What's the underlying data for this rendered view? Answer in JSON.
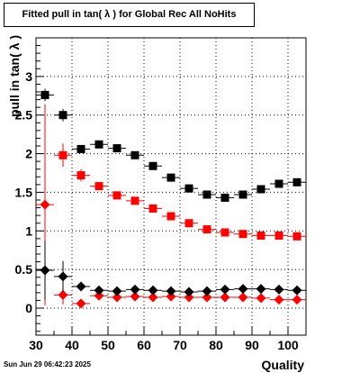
{
  "chart_data": {
    "type": "scatter",
    "title": "Fitted pull in tan( λ ) for Global Rec All NoHits",
    "xlabel": "Quality",
    "ylabel": "pull in tan( λ )",
    "xlim": [
      30,
      105
    ],
    "ylim": [
      -0.35,
      3.5
    ],
    "x_ticks": [
      30,
      40,
      50,
      60,
      70,
      80,
      90,
      100
    ],
    "y_ticks": [
      0,
      0.5,
      1,
      1.5,
      2,
      2.5,
      3
    ],
    "y_tick_labels": [
      "0",
      "0.5",
      "1",
      "1.5",
      "2",
      "2.5",
      "3"
    ],
    "grid": true,
    "x": [
      32.5,
      37.5,
      42.5,
      47.5,
      52.5,
      57.5,
      62.5,
      67.5,
      72.5,
      77.5,
      82.5,
      87.5,
      92.5,
      97.5,
      102.5
    ],
    "series": [
      {
        "marker": "square",
        "color": "#000000",
        "values": [
          2.76,
          2.5,
          2.06,
          2.12,
          2.07,
          1.98,
          1.84,
          1.69,
          1.55,
          1.47,
          1.43,
          1.47,
          1.54,
          1.61,
          1.63
        ],
        "errors": [
          0.08,
          0.08,
          0.05,
          0.03,
          0.03,
          0.03,
          0.03,
          0.03,
          0.03,
          0.03,
          0.03,
          0.03,
          0.03,
          0.03,
          0.03
        ]
      },
      {
        "marker": "square",
        "color": "#ff0000",
        "values": [
          null,
          1.98,
          1.72,
          1.58,
          1.46,
          1.39,
          1.29,
          1.19,
          1.1,
          1.02,
          0.98,
          0.96,
          0.94,
          0.94,
          0.93
        ],
        "errors": [
          null,
          0.15,
          0.08,
          0.03,
          0.03,
          0.03,
          0.03,
          0.03,
          0.03,
          0.03,
          0.03,
          0.03,
          0.03,
          0.03,
          0.03
        ]
      },
      {
        "marker": "diamond",
        "color": "#ff0000",
        "values": [
          1.34,
          0.17,
          0.06,
          0.16,
          0.14,
          0.15,
          0.14,
          0.15,
          0.14,
          0.14,
          0.14,
          0.14,
          0.13,
          0.11,
          0.11
        ],
        "errors": [
          1.3,
          0.12,
          0.06,
          0.03,
          0.03,
          0.03,
          0.02,
          0.02,
          0.02,
          0.02,
          0.02,
          0.02,
          0.02,
          0.02,
          0.02
        ]
      },
      {
        "marker": "diamond",
        "color": "#000000",
        "values": [
          0.49,
          0.41,
          0.28,
          0.23,
          0.22,
          0.24,
          0.23,
          0.22,
          0.21,
          0.22,
          0.24,
          0.25,
          0.25,
          0.24,
          0.23
        ],
        "errors": [
          0.38,
          0.2,
          0.06,
          0.03,
          0.03,
          0.03,
          0.03,
          0.03,
          0.03,
          0.03,
          0.03,
          0.03,
          0.03,
          0.03,
          0.03
        ]
      }
    ]
  },
  "footer": {
    "datestamp": "Sun Jun 29 06:42:23 2025"
  }
}
